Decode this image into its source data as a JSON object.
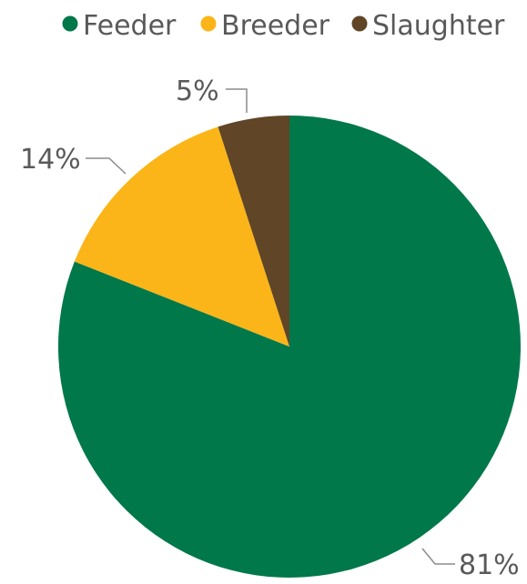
{
  "chart_data": {
    "type": "pie",
    "categories": [
      "Feeder",
      "Breeder",
      "Slaughter"
    ],
    "values": [
      81,
      14,
      5
    ],
    "data_labels": [
      "81%",
      "14%",
      "5%"
    ],
    "colors": [
      "#00784A",
      "#FBB518",
      "#604526"
    ],
    "legend": {
      "entries": [
        "Feeder",
        "Breeder",
        "Slaughter"
      ],
      "placement": "top"
    },
    "start_angle": "12 o'clock",
    "direction": "clockwise"
  }
}
